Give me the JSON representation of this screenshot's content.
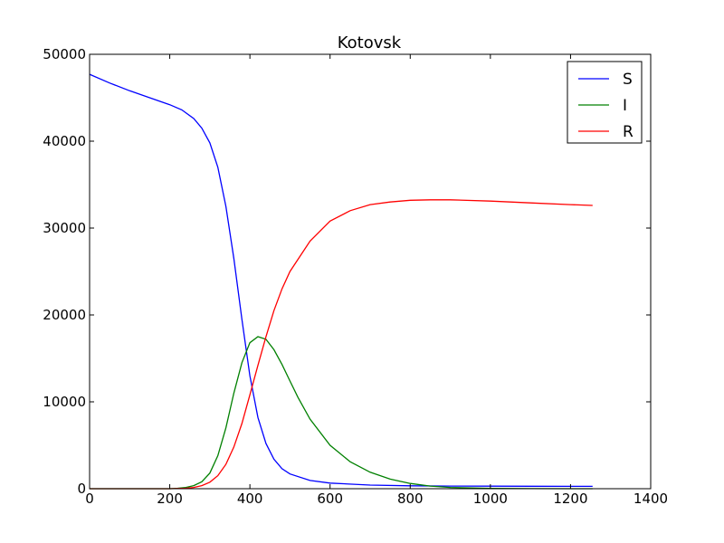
{
  "chart_data": {
    "type": "line",
    "title": "Kotovsk",
    "xlabel": "",
    "ylabel": "",
    "xlim": [
      0,
      1400
    ],
    "ylim": [
      0,
      50000
    ],
    "xticks": [
      0,
      200,
      400,
      600,
      800,
      1000,
      1200,
      1400
    ],
    "yticks": [
      0,
      10000,
      20000,
      30000,
      40000,
      50000
    ],
    "grid": false,
    "legend": "top-right",
    "series": [
      {
        "name": "S",
        "color": "#0000ff",
        "points": [
          [
            0,
            47700
          ],
          [
            50,
            46700
          ],
          [
            100,
            45800
          ],
          [
            150,
            45000
          ],
          [
            200,
            44200
          ],
          [
            230,
            43600
          ],
          [
            260,
            42600
          ],
          [
            280,
            41500
          ],
          [
            300,
            39800
          ],
          [
            320,
            37000
          ],
          [
            340,
            32500
          ],
          [
            360,
            26500
          ],
          [
            380,
            19500
          ],
          [
            400,
            13000
          ],
          [
            420,
            8200
          ],
          [
            440,
            5200
          ],
          [
            460,
            3400
          ],
          [
            480,
            2300
          ],
          [
            500,
            1700
          ],
          [
            550,
            950
          ],
          [
            600,
            650
          ],
          [
            700,
            420
          ],
          [
            800,
            330
          ],
          [
            900,
            300
          ],
          [
            1000,
            290
          ],
          [
            1100,
            280
          ],
          [
            1200,
            275
          ],
          [
            1255,
            270
          ]
        ]
      },
      {
        "name": "I",
        "color": "#008000",
        "points": [
          [
            0,
            0
          ],
          [
            200,
            0
          ],
          [
            220,
            50
          ],
          [
            240,
            150
          ],
          [
            260,
            350
          ],
          [
            280,
            800
          ],
          [
            300,
            1800
          ],
          [
            320,
            3800
          ],
          [
            340,
            7000
          ],
          [
            360,
            11000
          ],
          [
            380,
            14500
          ],
          [
            400,
            16800
          ],
          [
            420,
            17500
          ],
          [
            440,
            17200
          ],
          [
            460,
            16000
          ],
          [
            480,
            14300
          ],
          [
            500,
            12400
          ],
          [
            520,
            10500
          ],
          [
            550,
            8000
          ],
          [
            600,
            5000
          ],
          [
            650,
            3100
          ],
          [
            700,
            1900
          ],
          [
            750,
            1100
          ],
          [
            800,
            600
          ],
          [
            850,
            300
          ],
          [
            900,
            150
          ],
          [
            950,
            80
          ],
          [
            1000,
            40
          ],
          [
            1100,
            10
          ],
          [
            1255,
            0
          ]
        ]
      },
      {
        "name": "R",
        "color": "#ff0000",
        "points": [
          [
            0,
            0
          ],
          [
            200,
            0
          ],
          [
            240,
            50
          ],
          [
            260,
            150
          ],
          [
            280,
            350
          ],
          [
            300,
            750
          ],
          [
            320,
            1500
          ],
          [
            340,
            2800
          ],
          [
            360,
            4800
          ],
          [
            380,
            7500
          ],
          [
            400,
            10800
          ],
          [
            420,
            14200
          ],
          [
            440,
            17500
          ],
          [
            460,
            20500
          ],
          [
            480,
            23000
          ],
          [
            500,
            25000
          ],
          [
            550,
            28500
          ],
          [
            600,
            30800
          ],
          [
            650,
            32000
          ],
          [
            700,
            32700
          ],
          [
            750,
            33000
          ],
          [
            800,
            33200
          ],
          [
            850,
            33250
          ],
          [
            900,
            33250
          ],
          [
            1000,
            33100
          ],
          [
            1100,
            32900
          ],
          [
            1200,
            32700
          ],
          [
            1255,
            32600
          ]
        ]
      }
    ]
  }
}
